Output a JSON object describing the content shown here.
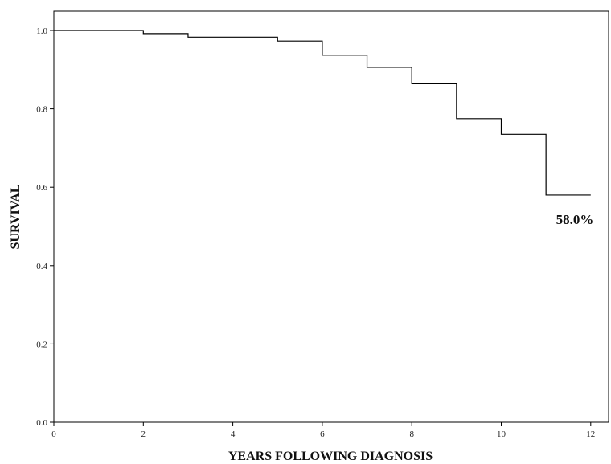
{
  "chart_data": {
    "type": "line",
    "subtype": "kaplan-meier-step",
    "xlabel": "YEARS FOLLOWING DIAGNOSIS",
    "ylabel": "SURVIVAL",
    "xlim": [
      0,
      12
    ],
    "ylim": [
      0.0,
      1.0
    ],
    "xticks": [
      "0",
      "2",
      "4",
      "6",
      "8",
      "10",
      "12"
    ],
    "yticks": [
      "0.0",
      "0.2",
      "0.4",
      "0.6",
      "0.8",
      "1.0"
    ],
    "series": [
      {
        "steps": [
          {
            "x": 0,
            "y": 1.0
          },
          {
            "x": 2,
            "y": 0.992
          },
          {
            "x": 3,
            "y": 0.983
          },
          {
            "x": 5,
            "y": 0.973
          },
          {
            "x": 6,
            "y": 0.937
          },
          {
            "x": 7,
            "y": 0.906
          },
          {
            "x": 8,
            "y": 0.864
          },
          {
            "x": 9,
            "y": 0.775
          },
          {
            "x": 10,
            "y": 0.735
          },
          {
            "x": 11,
            "y": 0.58
          }
        ],
        "end_x": 12,
        "color": "#000000"
      }
    ],
    "annotations": [
      {
        "text": "58.0%",
        "x": 12,
        "y": 0.58
      }
    ],
    "grid": false,
    "legend": "none"
  }
}
